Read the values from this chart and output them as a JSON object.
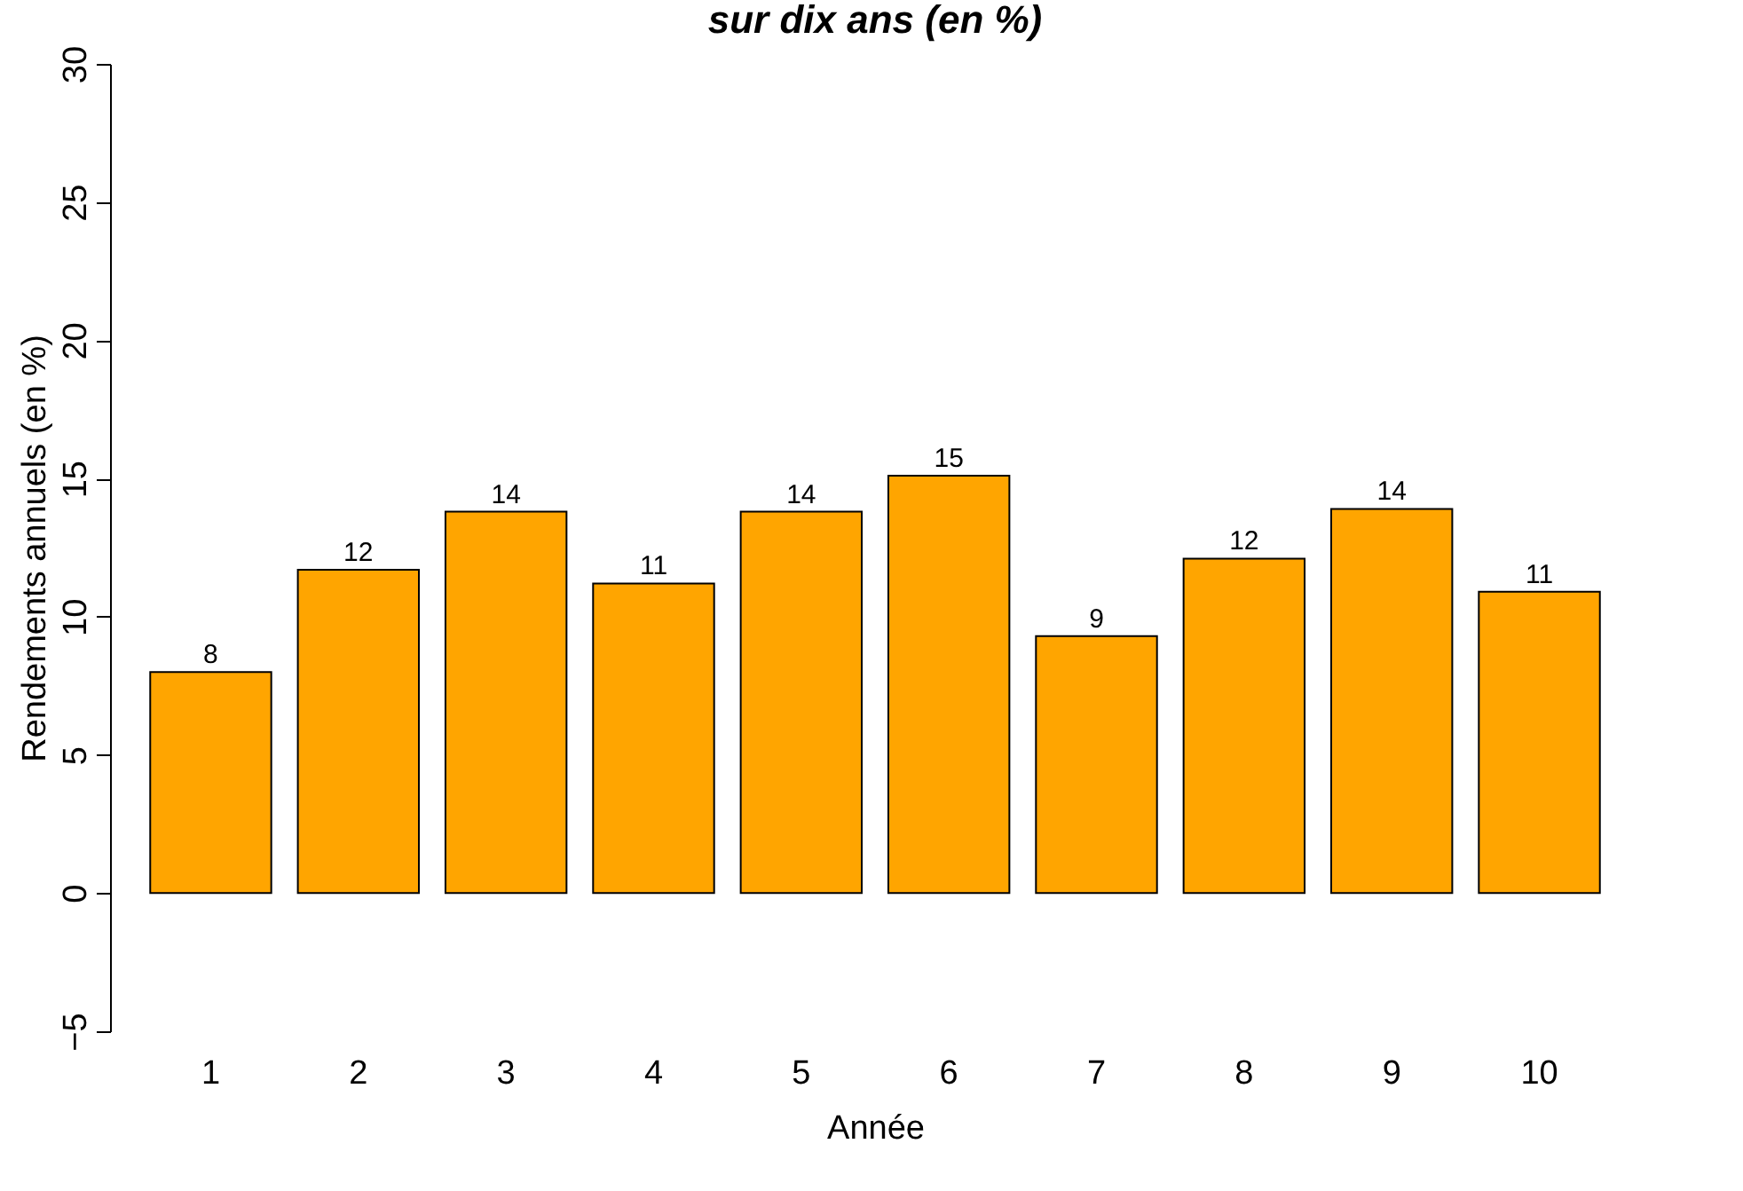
{
  "chart_data": {
    "type": "bar",
    "title": "sur dix ans (en %)",
    "xlabel": "Année",
    "ylabel": "Rendements annuels (en %)",
    "categories": [
      "1",
      "2",
      "3",
      "4",
      "5",
      "6",
      "7",
      "8",
      "9",
      "10"
    ],
    "values": [
      8.0,
      11.7,
      13.8,
      11.2,
      13.8,
      15.1,
      9.3,
      12.1,
      13.9,
      10.9
    ],
    "value_labels": [
      "8",
      "12",
      "14",
      "11",
      "14",
      "15",
      "9",
      "12",
      "14",
      "11"
    ],
    "color": "#ffa500",
    "ylim": [
      -5,
      30
    ],
    "yticks": [
      -5,
      0,
      5,
      10,
      15,
      20,
      25,
      30
    ],
    "grid": false
  }
}
